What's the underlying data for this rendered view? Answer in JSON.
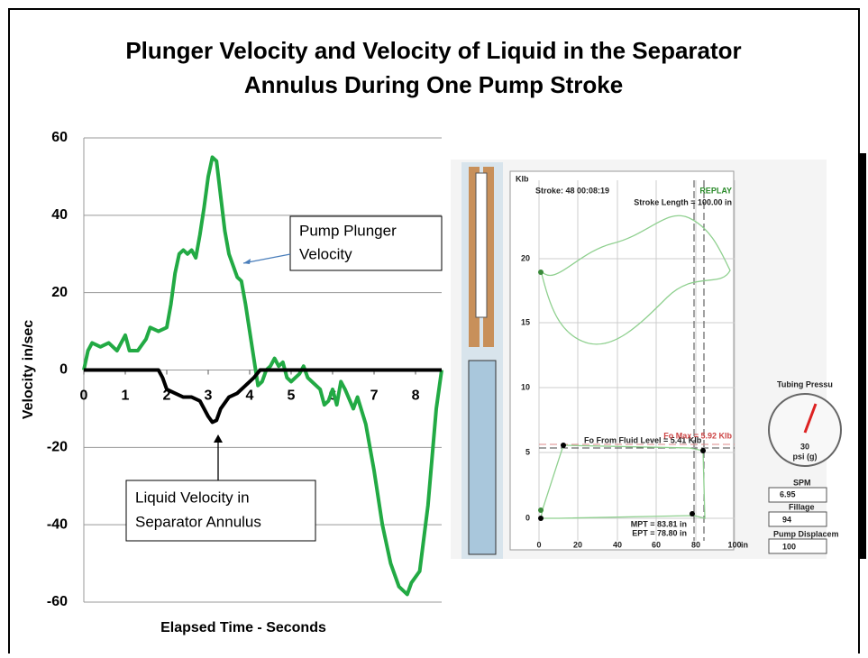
{
  "chart_data": {
    "type": "line",
    "title": [
      "Plunger Velocity and Velocity of Liquid in the Separator",
      "Annulus During One Pump Stroke"
    ],
    "x_label": "Elapsed Time - Seconds",
    "y_label": "Velocity in/sec",
    "xlim": [
      0,
      8.63
    ],
    "xticks": [
      0,
      1,
      2,
      3,
      4,
      5,
      6,
      7,
      8
    ],
    "ylim": [
      -60,
      60
    ],
    "yticks": [
      -60,
      -40,
      -20,
      0,
      20,
      40,
      60
    ],
    "grid": true,
    "series": [
      {
        "name": "Pump Plunger Velocity",
        "color": "#22aa44",
        "x": [
          0,
          0.1,
          0.2,
          0.4,
          0.6,
          0.8,
          1.0,
          1.1,
          1.3,
          1.5,
          1.6,
          1.8,
          2.0,
          2.1,
          2.2,
          2.3,
          2.4,
          2.5,
          2.6,
          2.7,
          2.8,
          2.9,
          3.0,
          3.1,
          3.2,
          3.3,
          3.4,
          3.5,
          3.6,
          3.7,
          3.8,
          3.9,
          4.0,
          4.1,
          4.2,
          4.3,
          4.4,
          4.5,
          4.6,
          4.7,
          4.8,
          4.9,
          5.0,
          5.1,
          5.2,
          5.3,
          5.4,
          5.5,
          5.7,
          5.8,
          5.9,
          6.0,
          6.1,
          6.2,
          6.3,
          6.5,
          6.6,
          6.8,
          7.0,
          7.2,
          7.4,
          7.6,
          7.8,
          7.9,
          8.1,
          8.3,
          8.5,
          8.63
        ],
        "values": [
          0,
          5,
          7,
          6,
          7,
          5,
          9,
          5,
          5,
          8,
          11,
          10,
          11,
          17,
          25,
          30,
          31,
          30,
          31,
          29,
          35,
          42,
          50,
          55,
          54,
          45,
          36,
          30,
          27,
          24,
          23,
          17,
          10,
          3,
          -4,
          -3,
          0,
          1,
          3,
          1,
          2,
          -2,
          -3,
          -2,
          -1,
          1,
          -2,
          -3,
          -5,
          -9,
          -8,
          -5,
          -9,
          -3,
          -5,
          -10,
          -7,
          -14,
          -26,
          -40,
          -50,
          -56,
          -58,
          -55,
          -52,
          -35,
          -10,
          0
        ]
      },
      {
        "name": "Liquid Velocity in Separator Annulus",
        "color": "#000000",
        "x": [
          0,
          1.8,
          1.9,
          2.0,
          2.2,
          2.4,
          2.6,
          2.8,
          3.0,
          3.1,
          3.2,
          3.3,
          3.5,
          3.7,
          3.9,
          4.1,
          4.25,
          8.63
        ],
        "values": [
          0,
          0,
          -2,
          -5,
          -6,
          -7,
          -7,
          -8,
          -12,
          -13.5,
          -13,
          -10,
          -7,
          -6,
          -4,
          -2,
          0,
          0
        ]
      }
    ],
    "annotations": [
      [
        "Pump Plunger",
        "Velocity"
      ],
      [
        "Liquid Velocity in",
        "Separator Annulus"
      ]
    ]
  },
  "inset": {
    "unit_y": "Klb",
    "stroke": "Stroke: 48  00:08:19",
    "mode": "REPLAY",
    "stroke_length": "Stroke Length = 100.00 in",
    "yticks": [
      "20",
      "15",
      "10",
      "5",
      "0"
    ],
    "xticks": [
      "0",
      "20",
      "40",
      "60",
      "80",
      "100"
    ],
    "unit_x": "in",
    "fo_fluid": "Fo From Fluid Level = 5.41 Klb",
    "fo_max": "Fo Max = 5.92 Klb",
    "mpt": "MPT = 83.81 in",
    "ept": "EPT = 78.80 in",
    "gauge_title": "Tubing Pressu",
    "gauge_unit": "psi (g)",
    "gauge_value": "30",
    "spm_label": "SPM",
    "spm": "6.95",
    "fillage_label": "Fillage",
    "fillage": "94",
    "disp_label": "Pump Displacem",
    "disp": "100"
  }
}
